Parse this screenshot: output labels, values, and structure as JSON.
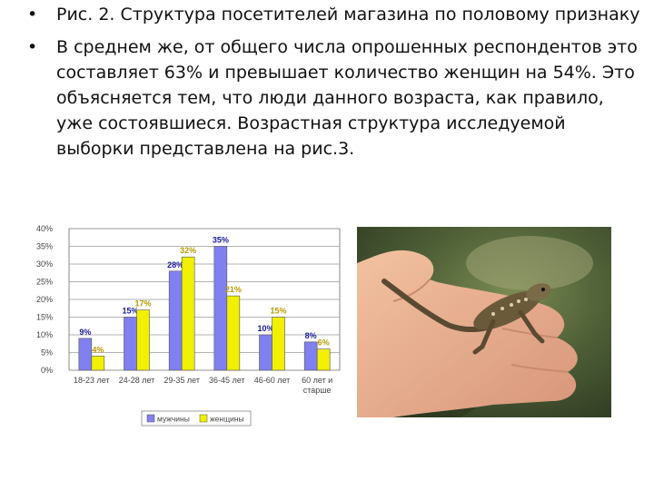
{
  "bullets": [
    "Рис. 2. Структура посетителей магазина по половому признаку",
    "В среднем же, от общего числа опрошенных респондентов это составляет 63% и превышает количество женщин на 54%. Это объясняется тем, что люди данного возраста, как правило, уже состоявшиеся. Возрастная структура исследуемой выборки представлена на рис.3."
  ],
  "bullet_icon": "bullet-dot-icon",
  "photo_icon": "lizard-on-hand-photo",
  "chart_data": {
    "type": "bar",
    "categories": [
      "18-23 лет",
      "24-28 лет",
      "29-35 лет",
      "36-45 лет",
      "46-60 лет",
      "60 лет и старше"
    ],
    "series": [
      {
        "name": "мужчины",
        "values": [
          9,
          15,
          28,
          35,
          10,
          8
        ],
        "labels": [
          "9%",
          "15%",
          "28%",
          "35%",
          "10%",
          "8%"
        ],
        "color": "#8080f0"
      },
      {
        "name": "женщины",
        "values": [
          4,
          17,
          32,
          21,
          15,
          6
        ],
        "labels": [
          "4%",
          "17%",
          "32%",
          "21%",
          "15%",
          "6%"
        ],
        "color": "#f0f000"
      }
    ],
    "yticks": [
      "0%",
      "5%",
      "10%",
      "15%",
      "20%",
      "25%",
      "30%",
      "35%",
      "40%"
    ],
    "ylim": [
      0,
      40
    ],
    "grid": true,
    "legend": "bottom",
    "label_colors": [
      "#1a1a99",
      "#b89a00"
    ]
  }
}
